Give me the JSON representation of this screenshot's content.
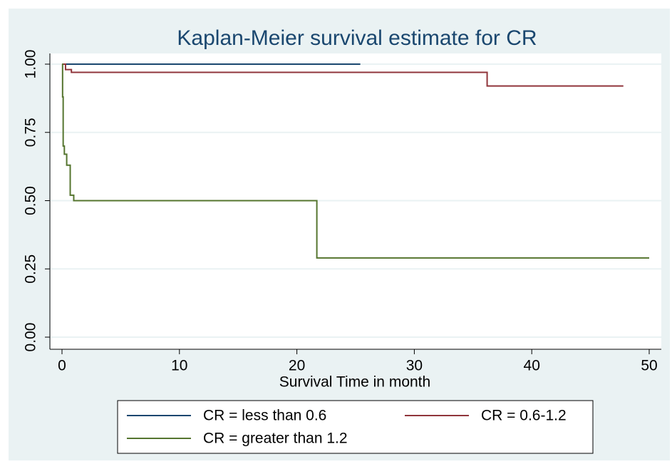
{
  "chart_data": {
    "type": "line",
    "step": true,
    "title": "Kaplan-Meier survival estimate  for  CR",
    "x_label": "Survival Time in month",
    "xlim": [
      0,
      50
    ],
    "xticks": [
      0,
      10,
      20,
      30,
      40,
      50
    ],
    "ylim": [
      0,
      1
    ],
    "yticks": [
      {
        "value": 0,
        "label": "0.00"
      },
      {
        "value": 0.25,
        "label": "0.25"
      },
      {
        "value": 0.5,
        "label": "0.50"
      },
      {
        "value": 0.75,
        "label": "0.75"
      },
      {
        "value": 1,
        "label": "1.00"
      }
    ],
    "grid": true,
    "legend": "bottom",
    "series": [
      {
        "name": "CR = less than 0.6",
        "color": "#1a476f",
        "x": [
          0,
          25.4
        ],
        "values": [
          1,
          1
        ]
      },
      {
        "name": "CR = 0.6-1.2",
        "color": "#90353b",
        "x": [
          0,
          0.3,
          0.8,
          36.2,
          47.8
        ],
        "values": [
          1,
          0.98,
          0.97,
          0.92,
          0.92
        ]
      },
      {
        "name": "CR = greater than 1.2",
        "color": "#55752f",
        "x": [
          0,
          0.05,
          0.1,
          0.2,
          0.4,
          0.7,
          1.0,
          21.7,
          50
        ],
        "values": [
          1,
          0.88,
          0.7,
          0.67,
          0.63,
          0.52,
          0.5,
          0.29,
          0.29
        ]
      }
    ]
  }
}
